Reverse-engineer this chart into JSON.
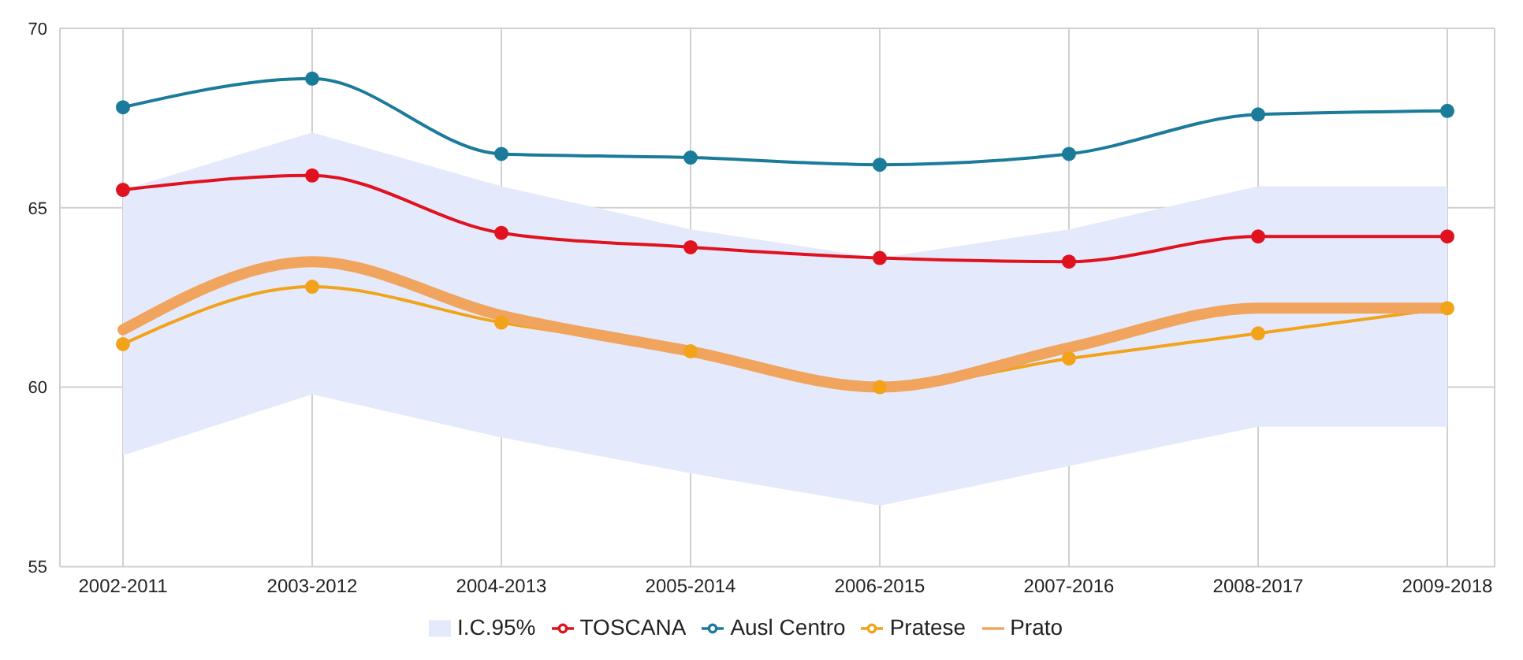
{
  "chart_data": {
    "type": "line",
    "categories": [
      "2002-2011",
      "2003-2012",
      "2004-2013",
      "2005-2014",
      "2006-2015",
      "2007-2016",
      "2008-2017",
      "2009-2018"
    ],
    "series": [
      {
        "name": "I.C.95%",
        "type": "area",
        "color": "#e4eafb",
        "values": [
          null,
          null,
          null,
          null,
          null,
          null,
          null,
          null
        ],
        "lower": [
          58.1,
          59.8,
          58.6,
          57.6,
          56.7,
          57.8,
          58.9,
          58.9
        ],
        "upper": [
          65.5,
          67.1,
          65.6,
          64.4,
          63.6,
          64.4,
          65.6,
          65.6
        ]
      },
      {
        "name": "TOSCANA",
        "color": "#e0121f",
        "marker": "circle",
        "values": [
          65.5,
          65.9,
          64.3,
          63.9,
          63.6,
          63.5,
          64.2,
          64.2
        ]
      },
      {
        "name": "Ausl Centro",
        "color": "#1b7b9b",
        "marker": "circle",
        "values": [
          67.8,
          68.6,
          66.5,
          66.4,
          66.2,
          66.5,
          67.6,
          67.7
        ]
      },
      {
        "name": "Pratese",
        "color": "#f2a31a",
        "marker": "circle",
        "values": [
          61.2,
          62.8,
          61.8,
          61.0,
          60.0,
          60.8,
          61.5,
          62.2
        ]
      },
      {
        "name": "Prato",
        "color": "#f0a45e",
        "marker": "none",
        "values": [
          61.6,
          63.5,
          62.0,
          61.0,
          60.0,
          61.1,
          62.2,
          62.2
        ]
      }
    ],
    "ylim": [
      55,
      70
    ],
    "yticks": [
      55,
      60,
      65,
      70
    ],
    "grid": true,
    "legend": "bottom"
  }
}
